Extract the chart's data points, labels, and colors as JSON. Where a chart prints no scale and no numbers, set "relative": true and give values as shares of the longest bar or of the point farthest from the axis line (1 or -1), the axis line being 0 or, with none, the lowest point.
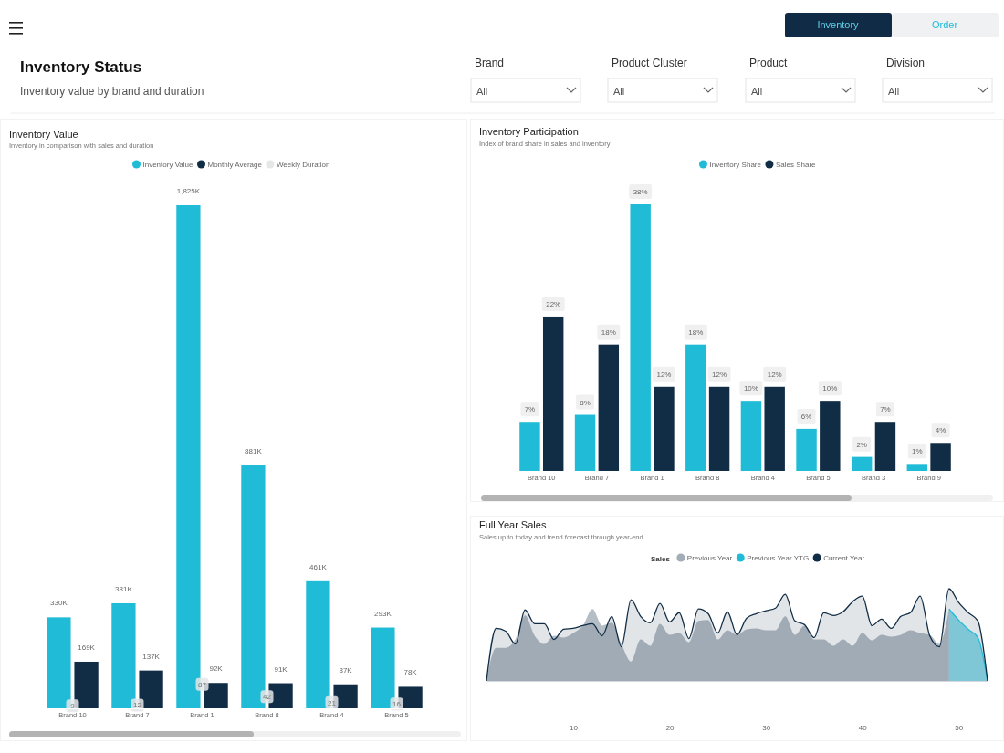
{
  "chart_data": [
    {
      "type": "other",
      "title": "Inventory Status",
      "subtitle": "Inventory value by brand and duration",
      "annotations": [
        "Inventory",
        "Order",
        "Brand",
        "All",
        "Product Cluster",
        "All",
        "Product",
        "All",
        "Division",
        "All"
      ]
    },
    {
      "type": "bar",
      "title": "Inventory Value",
      "subtitle": "Inventory in comparison with sales and duration",
      "legend": "top",
      "marker": "square",
      "categories": [
        "Brand 10",
        "Brand 7",
        "Brand 1",
        "Brand 8",
        "Brand 4",
        "Brand 5"
      ],
      "series": [
        {
          "name": "Inventory Value",
          "color": "#20bcd7",
          "values": [
            330,
            381,
            1825,
            881,
            461,
            293
          ],
          "value_labels": [
            "330K",
            "381K",
            "1,825K",
            "881K",
            "461K",
            "293K"
          ]
        },
        {
          "name": "Monthly Average",
          "color": "#112d45",
          "values": [
            169,
            137,
            92,
            91,
            87,
            78
          ],
          "value_labels": [
            "169K",
            "137K",
            "92K",
            "91K",
            "87K",
            "78K"
          ]
        },
        {
          "name": "Weekly Duration",
          "type": "scatter",
          "color": "#e4e6e8",
          "x": [
            "Brand 10",
            "Brand 7",
            "Brand 1",
            "Brand 8",
            "Brand 4",
            "Brand 5"
          ],
          "values": [
            9,
            12,
            87,
            42,
            21,
            16
          ],
          "value_labels": [
            "9",
            "12",
            "87",
            "42",
            "21",
            "16"
          ]
        }
      ]
    },
    {
      "type": "bar",
      "title": "Inventory Participation",
      "subtitle": "Index of brand share in sales and inventory",
      "legend": "top",
      "categories": [
        "Brand 10",
        "Brand 7",
        "Brand 1",
        "Brand 8",
        "Brand 4",
        "Brand 5",
        "Brand 3",
        "Brand 9"
      ],
      "series": [
        {
          "name": "Inventory Share",
          "color": "#20bcd7",
          "values": [
            7,
            8,
            38,
            18,
            10,
            6,
            2,
            1
          ],
          "value_labels": [
            "7%",
            "8%",
            "38%",
            "18%",
            "10%",
            "6%",
            "2%",
            "1%"
          ]
        },
        {
          "name": "Sales Share",
          "color": "#112d45",
          "values": [
            22,
            18,
            12,
            12,
            12,
            10,
            7,
            4
          ],
          "value_labels": [
            "22%",
            "18%",
            "12%",
            "12%",
            "12%",
            "10%",
            "7%",
            "4%"
          ]
        }
      ]
    },
    {
      "type": "area",
      "title": "Full Year Sales",
      "subtitle": "Sales up to today and trend forecast through year-end",
      "legend": "top",
      "legend_title": "Sales",
      "relative": true,
      "tick_labels": "x",
      "xlim": [
        1,
        53
      ],
      "xticks": [
        10,
        20,
        30,
        40,
        50
      ],
      "series": [
        {
          "name": "Previous Year",
          "color": "#a3adb7",
          "x": [
            1,
            2,
            3,
            4,
            5,
            6,
            7,
            8,
            9,
            10,
            11,
            12,
            13,
            14,
            15,
            16,
            17,
            18,
            19,
            20,
            21,
            22,
            23,
            24,
            25,
            26,
            27,
            28,
            29,
            30,
            31,
            32,
            33,
            34,
            35,
            36,
            37,
            38,
            39,
            40,
            41,
            42,
            43,
            44,
            45,
            46,
            47,
            48,
            49
          ],
          "values": [
            0,
            0.36,
            0.36,
            0.45,
            0.71,
            0.49,
            0.4,
            0.49,
            0.47,
            0.52,
            0.6,
            0.78,
            0.6,
            0.63,
            0.4,
            0.21,
            0.45,
            0.38,
            0.62,
            0.5,
            0.52,
            0.42,
            0.65,
            0.66,
            0.45,
            0.55,
            0.5,
            0.56,
            0.57,
            0.55,
            0.55,
            0.7,
            0.5,
            0.6,
            0.45,
            0.45,
            0.38,
            0.45,
            0.38,
            0.52,
            0.44,
            0.5,
            0.48,
            0.5,
            0.55,
            0.52,
            0.5,
            0.4,
            0.78
          ]
        },
        {
          "name": "Previous Year YTG",
          "color": "#20bcd7",
          "x": [
            49,
            50,
            51,
            52,
            53
          ],
          "values": [
            0.78,
            0.66,
            0.56,
            0.47,
            0
          ]
        },
        {
          "name": "Current Year",
          "color": "#112d45",
          "x": [
            1,
            2,
            3,
            4,
            5,
            6,
            7,
            8,
            9,
            10,
            11,
            12,
            13,
            14,
            15,
            16,
            17,
            18,
            19,
            20,
            21,
            22,
            23,
            24,
            25,
            26,
            27,
            28,
            29,
            30,
            31,
            32,
            33,
            34,
            35,
            36,
            37,
            38,
            39,
            40,
            41,
            42,
            43,
            44,
            45,
            46,
            47,
            48,
            49,
            50,
            51,
            52,
            53
          ],
          "values": [
            0,
            0.57,
            0.54,
            0.4,
            0.77,
            0.62,
            0.62,
            0.45,
            0.56,
            0.57,
            0.6,
            0.62,
            0.49,
            0.7,
            0.37,
            0.88,
            0.7,
            0.63,
            0.84,
            0.64,
            0.74,
            0.46,
            0.78,
            0.73,
            0.52,
            0.75,
            0.5,
            0.68,
            0.73,
            0.76,
            0.79,
            0.94,
            0.65,
            0.61,
            0.47,
            0.74,
            0.71,
            0.75,
            0.86,
            0.92,
            0.6,
            0.67,
            0.57,
            0.7,
            0.74,
            0.92,
            0.49,
            0.37,
            1,
            0.85,
            0.74,
            0.65,
            0
          ]
        }
      ]
    }
  ]
}
